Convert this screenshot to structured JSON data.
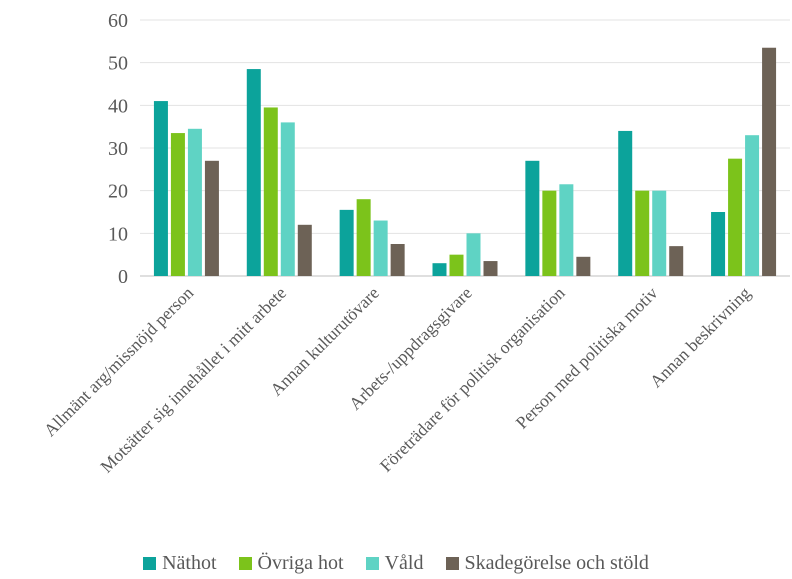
{
  "chart_data": {
    "type": "bar",
    "title": "",
    "xlabel": "",
    "ylabel": "",
    "ylim": [
      0,
      60
    ],
    "yticks": [
      0,
      10,
      20,
      30,
      40,
      50,
      60
    ],
    "grid": true,
    "legend_position": "bottom",
    "categories": [
      "Allmänt arg/missnöjd person",
      "Motsätter sig innehållet i mitt arbete",
      "Annan kulturutövare",
      "Arbets-/uppdragsgivare",
      "Företrädare för politisk organisation",
      "Person med politiska motiv",
      "Annan beskrivning"
    ],
    "series": [
      {
        "name": "Näthot",
        "color": "#0ca39b",
        "values": [
          41,
          48.5,
          15.5,
          3,
          27,
          34,
          15
        ]
      },
      {
        "name": "Övriga hot",
        "color": "#7cc31b",
        "values": [
          33.5,
          39.5,
          18,
          5,
          20,
          20,
          27.5
        ]
      },
      {
        "name": "Våld",
        "color": "#5fd3c4",
        "values": [
          34.5,
          36,
          13,
          10,
          21.5,
          20,
          33
        ]
      },
      {
        "name": "Skadegörelse och stöld",
        "color": "#6d6256",
        "values": [
          27,
          12,
          7.5,
          3.5,
          4.5,
          7,
          53.5
        ]
      }
    ]
  }
}
